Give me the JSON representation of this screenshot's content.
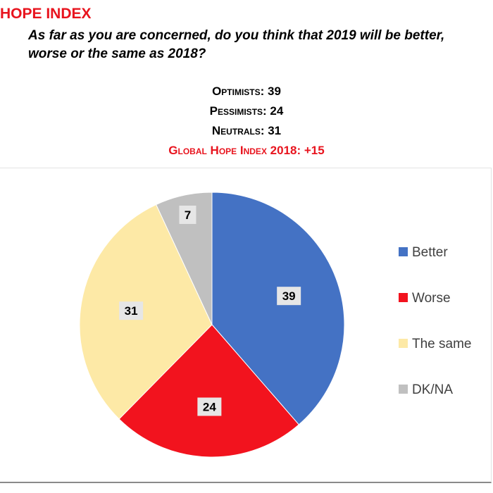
{
  "header": {
    "title": "HOPE INDEX",
    "question": "As far as you are concerned, do you think that 2019 will be better, worse or the same as 2018?",
    "optimists": "Optimists: 39",
    "pessimists": "Pessimists: 24",
    "neutrals": "Neutrals: 31",
    "global_index": "Global Hope Index 2018: +15"
  },
  "colors": {
    "accent_red": "#e8141e",
    "better": "#4472c4",
    "worse": "#f2131e",
    "same": "#fde9a6",
    "dkna": "#c0c0c0"
  },
  "chart_data": {
    "type": "pie",
    "categories": [
      "Better",
      "Worse",
      "The same",
      "DK/NA"
    ],
    "values": [
      39,
      24,
      31,
      7
    ],
    "colors": [
      "#4472c4",
      "#f2131e",
      "#fde9a6",
      "#c0c0c0"
    ],
    "data_labels": [
      "39",
      "24",
      "31",
      "7"
    ],
    "start": "12 o'clock, clockwise",
    "legend_position": "right"
  }
}
